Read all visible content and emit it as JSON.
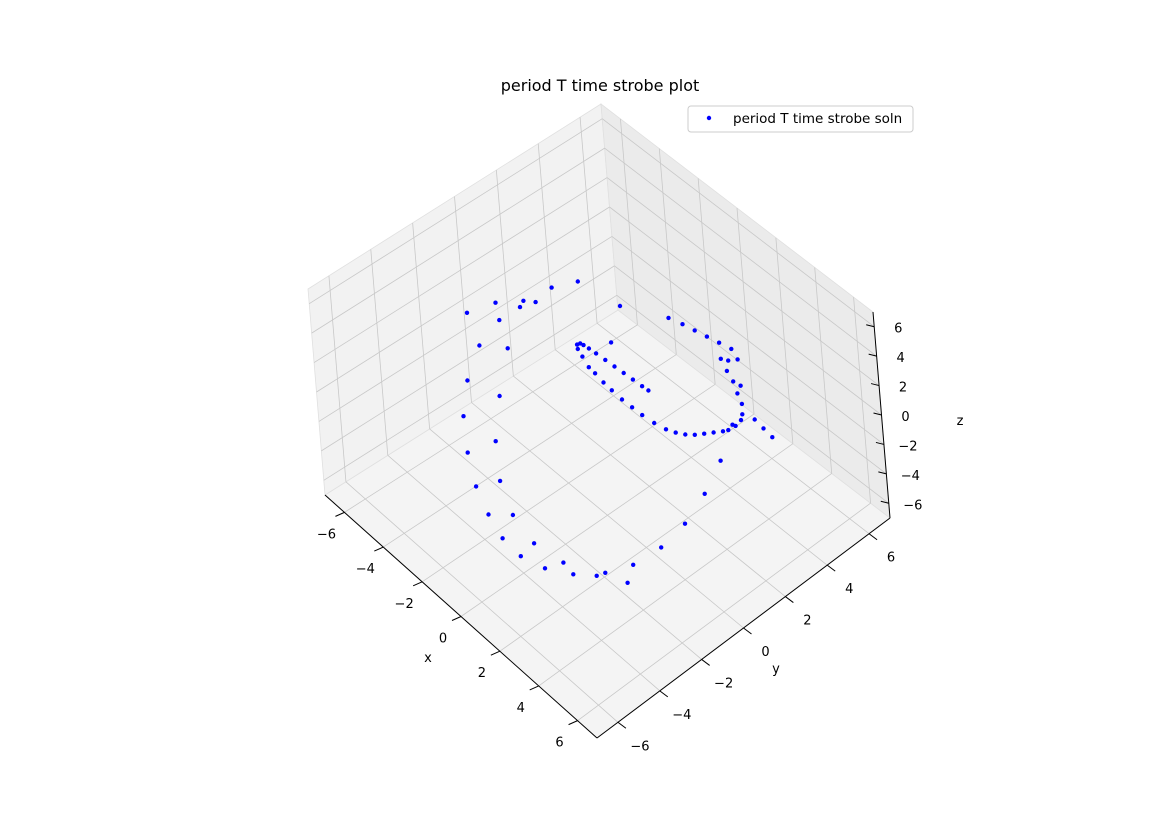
{
  "chart_data": {
    "type": "scatter",
    "projection": "3d",
    "title": "period T time strobe plot",
    "xlabel": "x",
    "ylabel": "y",
    "zlabel": "z",
    "xlim": [
      -7,
      7
    ],
    "ylim": [
      -7,
      7
    ],
    "zlim": [
      -7,
      7
    ],
    "xticks": [
      -6,
      -4,
      -2,
      0,
      2,
      4,
      6
    ],
    "yticks": [
      -6,
      -4,
      -2,
      0,
      2,
      4,
      6
    ],
    "zticks": [
      -6,
      -4,
      -2,
      0,
      2,
      4,
      6
    ],
    "xtick_labels": [
      "−6",
      "−4",
      "−2",
      "0",
      "2",
      "4",
      "6"
    ],
    "ytick_labels": [
      "−6",
      "−4",
      "−2",
      "0",
      "2",
      "4",
      "6"
    ],
    "ztick_labels": [
      "−6",
      "−4",
      "−2",
      "0",
      "2",
      "4",
      "6"
    ],
    "grid": true,
    "legend": {
      "position": "top-right",
      "entries": [
        "period T time strobe soln"
      ]
    },
    "series": [
      {
        "name": "period T time strobe soln",
        "color": "#0000ff",
        "marker": "dot",
        "points": [
          [
            1.85,
            0.8,
            2.7
          ],
          [
            1.4,
            0.9,
            2.4
          ],
          [
            0.8,
            1.0,
            2.1
          ],
          [
            0.2,
            1.1,
            1.8
          ],
          [
            -0.4,
            1.2,
            1.5
          ],
          [
            -1.0,
            1.3,
            1.2
          ],
          [
            -1.6,
            1.4,
            0.9
          ],
          [
            -2.1,
            1.5,
            0.6
          ],
          [
            -2.5,
            1.6,
            0.3
          ],
          [
            -2.8,
            1.7,
            0.0
          ],
          [
            -3.1,
            1.8,
            -0.5
          ],
          [
            -3.2,
            1.9,
            -1.0
          ],
          [
            -3.1,
            2.0,
            -1.5
          ],
          [
            -2.8,
            2.0,
            -1.9
          ],
          [
            -2.6,
            2.1,
            -2.2
          ],
          [
            -2.3,
            2.2,
            -2.6
          ],
          [
            -2.0,
            2.3,
            -2.9
          ],
          [
            -1.6,
            2.4,
            -3.2
          ],
          [
            -1.2,
            2.5,
            -3.4
          ],
          [
            -0.8,
            2.6,
            -3.6
          ],
          [
            -0.3,
            2.7,
            -3.7
          ],
          [
            0.2,
            2.8,
            -3.7
          ],
          [
            0.6,
            2.9,
            -3.6
          ],
          [
            1.0,
            3.0,
            -3.4
          ],
          [
            1.4,
            3.1,
            -3.1
          ],
          [
            1.8,
            3.2,
            -2.7
          ],
          [
            2.2,
            3.3,
            -2.3
          ],
          [
            2.6,
            3.4,
            -1.9
          ],
          [
            2.9,
            3.4,
            -1.5
          ],
          [
            3.2,
            3.5,
            -1.0
          ],
          [
            3.4,
            3.6,
            -0.5
          ],
          [
            3.5,
            3.6,
            0.0
          ],
          [
            3.4,
            3.7,
            0.5
          ],
          [
            3.2,
            3.7,
            1.0
          ],
          [
            2.9,
            3.8,
            1.4
          ],
          [
            2.6,
            3.8,
            1.8
          ],
          [
            2.2,
            3.9,
            2.1
          ],
          [
            2.6,
            3.9,
            2.4
          ],
          [
            3.0,
            4.0,
            2.8
          ],
          [
            2.7,
            4.0,
            3.2
          ],
          [
            2.3,
            3.8,
            3.4
          ],
          [
            1.9,
            3.6,
            3.6
          ],
          [
            1.5,
            3.4,
            3.8
          ],
          [
            1.1,
            3.2,
            4.0
          ],
          [
            0.6,
            3.0,
            4.1
          ],
          [
            -0.8,
            2.0,
            4.4
          ],
          [
            0.5,
            0.4,
            4.9
          ],
          [
            -3.0,
            0.0,
            4.2
          ],
          [
            -3.4,
            -0.4,
            3.8
          ],
          [
            -2.8,
            -1.6,
            2.8
          ],
          [
            -2.0,
            -2.8,
            1.6
          ],
          [
            -1.2,
            -3.8,
            0.4
          ],
          [
            -0.4,
            -4.4,
            -0.8
          ],
          [
            0.4,
            -4.6,
            -2.0
          ],
          [
            1.2,
            -4.4,
            -3.2
          ],
          [
            2.0,
            -3.8,
            -4.2
          ],
          [
            2.8,
            -3.0,
            -5.0
          ],
          [
            3.5,
            -2.2,
            -5.5
          ],
          [
            -3.5,
            2.4,
            2.8
          ],
          [
            -4.0,
            1.6,
            2.6
          ],
          [
            -4.4,
            0.6,
            2.2
          ],
          [
            -4.6,
            -0.4,
            1.6
          ],
          [
            -4.6,
            -1.4,
            0.8
          ],
          [
            -4.2,
            -2.4,
            -0.2
          ],
          [
            -3.6,
            -3.2,
            -1.2
          ],
          [
            -2.8,
            -3.8,
            -2.2
          ],
          [
            -2.0,
            -4.2,
            -3.2
          ],
          [
            -1.2,
            -4.4,
            -4.0
          ],
          [
            -0.4,
            -4.5,
            -4.6
          ],
          [
            0.4,
            -4.4,
            -5.0
          ],
          [
            1.2,
            -4.0,
            -5.3
          ],
          [
            2.0,
            -3.4,
            -5.4
          ],
          [
            2.8,
            -2.6,
            -5.2
          ],
          [
            3.4,
            -1.8,
            -4.8
          ],
          [
            3.8,
            -0.8,
            -4.2
          ],
          [
            4.0,
            0.2,
            -3.4
          ],
          [
            4.0,
            1.2,
            -2.4
          ],
          [
            3.8,
            2.2,
            -1.4
          ],
          [
            3.4,
            3.2,
            -0.4
          ],
          [
            2.8,
            4.2,
            0.6
          ],
          [
            4.4,
            3.4,
            0.8
          ],
          [
            4.6,
            3.6,
            0.2
          ],
          [
            4.8,
            3.8,
            -0.4
          ],
          [
            -4.0,
            -1.0,
            4.0
          ],
          [
            -4.4,
            -2.0,
            3.8
          ]
        ]
      }
    ]
  }
}
